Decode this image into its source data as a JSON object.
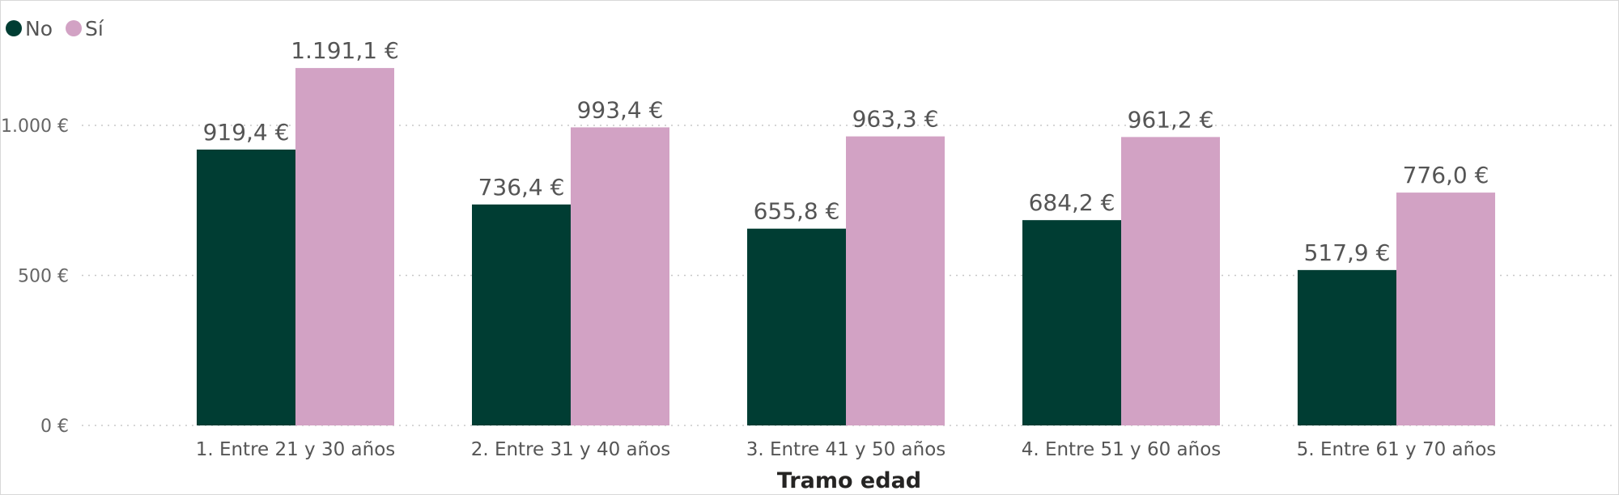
{
  "chart_data": {
    "type": "bar",
    "xlabel": "Tramo edad",
    "ylabel": "",
    "ylim": [
      0,
      1300
    ],
    "yticks": [
      {
        "value": 0,
        "label": "0 €"
      },
      {
        "value": 500,
        "label": "500 €"
      },
      {
        "value": 1000,
        "label": "1.000 €"
      }
    ],
    "grid": true,
    "legend_position": "top-left",
    "categories": [
      "1. Entre 21 y 30 años",
      "2. Entre 31 y 40 años",
      "3. Entre 41 y 50 años",
      "4. Entre 51 y 60 años",
      "5. Entre 61 y 70 años"
    ],
    "series": [
      {
        "name": "No",
        "color": "#003d33",
        "values": [
          919.4,
          736.4,
          655.8,
          684.2,
          517.9
        ],
        "labels": [
          "919,4 €",
          "736,4 €",
          "655,8 €",
          "684,2 €",
          "517,9 €"
        ]
      },
      {
        "name": "Sí",
        "color": "#d2a2c4",
        "values": [
          1191.1,
          993.4,
          963.3,
          961.2,
          776.0
        ],
        "labels": [
          "1.191,1 €",
          "993,4 €",
          "963,3 €",
          "961,2 €",
          "776,0 €"
        ]
      }
    ]
  }
}
